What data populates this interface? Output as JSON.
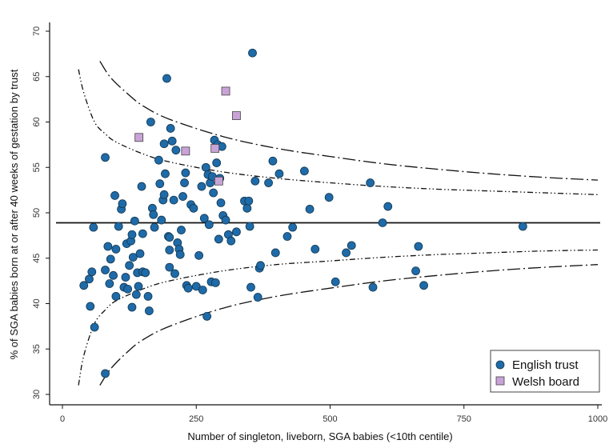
{
  "chart_data": {
    "type": "scatter",
    "xlabel": "Number of singleton, liveborn, SGA babies (<10th centile)",
    "ylabel": "% of SGA babies born at or after 40 weeks of gestation by trust",
    "xlim": [
      0,
      1000
    ],
    "ylim": [
      29.5,
      71
    ],
    "x_ticks": [
      "0",
      "250",
      "500",
      "750",
      "1000"
    ],
    "y_ticks": [
      "30",
      "35",
      "40",
      "45",
      "50",
      "55",
      "60",
      "65",
      "70"
    ],
    "x_tick_values": [
      0,
      250,
      500,
      750,
      1000
    ],
    "y_tick_values": [
      30,
      35,
      40,
      45,
      50,
      55,
      60,
      65,
      70
    ],
    "grid": false,
    "legend_position": "bottom-right",
    "mean_line": 48.9,
    "control_limits": {
      "inner_upper": [
        [
          30,
          65.8
        ],
        [
          40,
          63.2
        ],
        [
          60,
          60.0
        ],
        [
          80,
          58.7
        ],
        [
          100,
          57.8
        ],
        [
          150,
          56.5
        ],
        [
          200,
          55.6
        ],
        [
          300,
          54.5
        ],
        [
          400,
          53.8
        ],
        [
          500,
          53.3
        ],
        [
          600,
          52.9
        ],
        [
          700,
          52.6
        ],
        [
          800,
          52.4
        ],
        [
          900,
          52.2
        ],
        [
          1000,
          52.0
        ]
      ],
      "inner_lower": [
        [
          30,
          31.0
        ],
        [
          40,
          34.3
        ],
        [
          60,
          37.8
        ],
        [
          80,
          39.3
        ],
        [
          100,
          40.3
        ],
        [
          150,
          41.6
        ],
        [
          200,
          42.5
        ],
        [
          300,
          43.6
        ],
        [
          400,
          44.3
        ],
        [
          500,
          44.7
        ],
        [
          600,
          45.1
        ],
        [
          700,
          45.4
        ],
        [
          800,
          45.6
        ],
        [
          900,
          45.8
        ],
        [
          1000,
          45.9
        ]
      ],
      "outer_upper": [
        [
          70,
          66.7
        ],
        [
          90,
          64.9
        ],
        [
          120,
          63.2
        ],
        [
          150,
          61.8
        ],
        [
          200,
          60.3
        ],
        [
          300,
          58.4
        ],
        [
          400,
          57.1
        ],
        [
          500,
          56.2
        ],
        [
          600,
          55.4
        ],
        [
          700,
          54.8
        ],
        [
          800,
          54.3
        ],
        [
          900,
          53.9
        ],
        [
          1000,
          53.6
        ]
      ],
      "outer_lower": [
        [
          70,
          31.0
        ],
        [
          90,
          32.8
        ],
        [
          120,
          34.6
        ],
        [
          150,
          36.0
        ],
        [
          200,
          37.5
        ],
        [
          300,
          39.5
        ],
        [
          400,
          40.8
        ],
        [
          500,
          41.7
        ],
        [
          600,
          42.5
        ],
        [
          700,
          43.1
        ],
        [
          800,
          43.6
        ],
        [
          900,
          44.0
        ],
        [
          1000,
          44.3
        ]
      ]
    },
    "series": [
      {
        "name": "English trust",
        "color": "#1f6aa8",
        "marker": "circle",
        "points": [
          [
            40,
            42
          ],
          [
            50,
            42.7
          ],
          [
            52,
            39.7
          ],
          [
            55,
            43.5
          ],
          [
            58,
            48.4
          ],
          [
            60,
            37.4
          ],
          [
            80,
            56.1
          ],
          [
            80,
            32.3
          ],
          [
            80,
            43.7
          ],
          [
            85,
            46.3
          ],
          [
            88,
            42.2
          ],
          [
            90,
            44.9
          ],
          [
            95,
            43.1
          ],
          [
            98,
            51.9
          ],
          [
            100,
            46
          ],
          [
            100,
            40.8
          ],
          [
            105,
            48.5
          ],
          [
            110,
            50.4
          ],
          [
            112,
            51
          ],
          [
            115,
            41.8
          ],
          [
            118,
            42.9
          ],
          [
            120,
            46.6
          ],
          [
            122,
            41.6
          ],
          [
            125,
            44.2
          ],
          [
            128,
            46.9
          ],
          [
            130,
            47.6
          ],
          [
            130,
            39.6
          ],
          [
            132,
            45.1
          ],
          [
            135,
            49.1
          ],
          [
            138,
            41
          ],
          [
            140,
            43.4
          ],
          [
            142,
            41.9
          ],
          [
            145,
            45.5
          ],
          [
            148,
            52.9
          ],
          [
            150,
            47.7
          ],
          [
            150,
            43.5
          ],
          [
            155,
            43.4
          ],
          [
            160,
            40.8
          ],
          [
            162,
            39.2
          ],
          [
            165,
            60
          ],
          [
            168,
            50.5
          ],
          [
            170,
            49.8
          ],
          [
            172,
            48.4
          ],
          [
            180,
            55.8
          ],
          [
            182,
            53.2
          ],
          [
            185,
            49.2
          ],
          [
            188,
            51.4
          ],
          [
            190,
            52
          ],
          [
            190,
            57.6
          ],
          [
            192,
            54.3
          ],
          [
            195,
            64.8
          ],
          [
            198,
            47.4
          ],
          [
            200,
            47.3
          ],
          [
            200,
            44
          ],
          [
            200,
            45.9
          ],
          [
            202,
            59.3
          ],
          [
            205,
            57.9
          ],
          [
            208,
            51.4
          ],
          [
            210,
            43.3
          ],
          [
            212,
            56.9
          ],
          [
            215,
            46.7
          ],
          [
            218,
            46
          ],
          [
            220,
            45.4
          ],
          [
            222,
            48.1
          ],
          [
            225,
            51.8
          ],
          [
            228,
            53.3
          ],
          [
            230,
            54.4
          ],
          [
            232,
            42
          ],
          [
            235,
            41.7
          ],
          [
            240,
            50.9
          ],
          [
            245,
            50.5
          ],
          [
            250,
            41.9
          ],
          [
            255,
            45.3
          ],
          [
            260,
            52.9
          ],
          [
            262,
            41.5
          ],
          [
            265,
            49.4
          ],
          [
            268,
            55
          ],
          [
            270,
            38.6
          ],
          [
            272,
            54.2
          ],
          [
            274,
            48.7
          ],
          [
            276,
            53.3
          ],
          [
            278,
            42.4
          ],
          [
            280,
            54
          ],
          [
            282,
            52.2
          ],
          [
            284,
            58
          ],
          [
            286,
            42.3
          ],
          [
            288,
            55.5
          ],
          [
            290,
            57.5
          ],
          [
            292,
            47.1
          ],
          [
            294,
            53.8
          ],
          [
            296,
            51.1
          ],
          [
            298,
            57.3
          ],
          [
            300,
            49.7
          ],
          [
            305,
            49.2
          ],
          [
            310,
            47.6
          ],
          [
            315,
            46.9
          ],
          [
            325,
            47.9
          ],
          [
            340,
            51.3
          ],
          [
            345,
            50.5
          ],
          [
            348,
            51.3
          ],
          [
            350,
            48.5
          ],
          [
            352,
            41.8
          ],
          [
            355,
            67.6
          ],
          [
            360,
            53.5
          ],
          [
            365,
            40.7
          ],
          [
            368,
            43.9
          ],
          [
            370,
            44.2
          ],
          [
            385,
            53.3
          ],
          [
            393,
            55.7
          ],
          [
            398,
            45.6
          ],
          [
            405,
            54.3
          ],
          [
            420,
            47.4
          ],
          [
            430,
            48.4
          ],
          [
            452,
            54.6
          ],
          [
            462,
            50.4
          ],
          [
            472,
            46
          ],
          [
            498,
            51.7
          ],
          [
            510,
            42.4
          ],
          [
            530,
            45.6
          ],
          [
            540,
            46.4
          ],
          [
            575,
            53.3
          ],
          [
            580,
            41.8
          ],
          [
            598,
            48.9
          ],
          [
            608,
            50.7
          ],
          [
            660,
            43.6
          ],
          [
            665,
            46.3
          ],
          [
            675,
            42
          ],
          [
            860,
            48.5
          ]
        ]
      },
      {
        "name": "Welsh board",
        "color": "#c9a3d8",
        "marker": "square",
        "points": [
          [
            143,
            58.3
          ],
          [
            230,
            56.8
          ],
          [
            285,
            57.1
          ],
          [
            292,
            53.5
          ],
          [
            305,
            63.4
          ],
          [
            325,
            60.7
          ]
        ]
      }
    ]
  }
}
